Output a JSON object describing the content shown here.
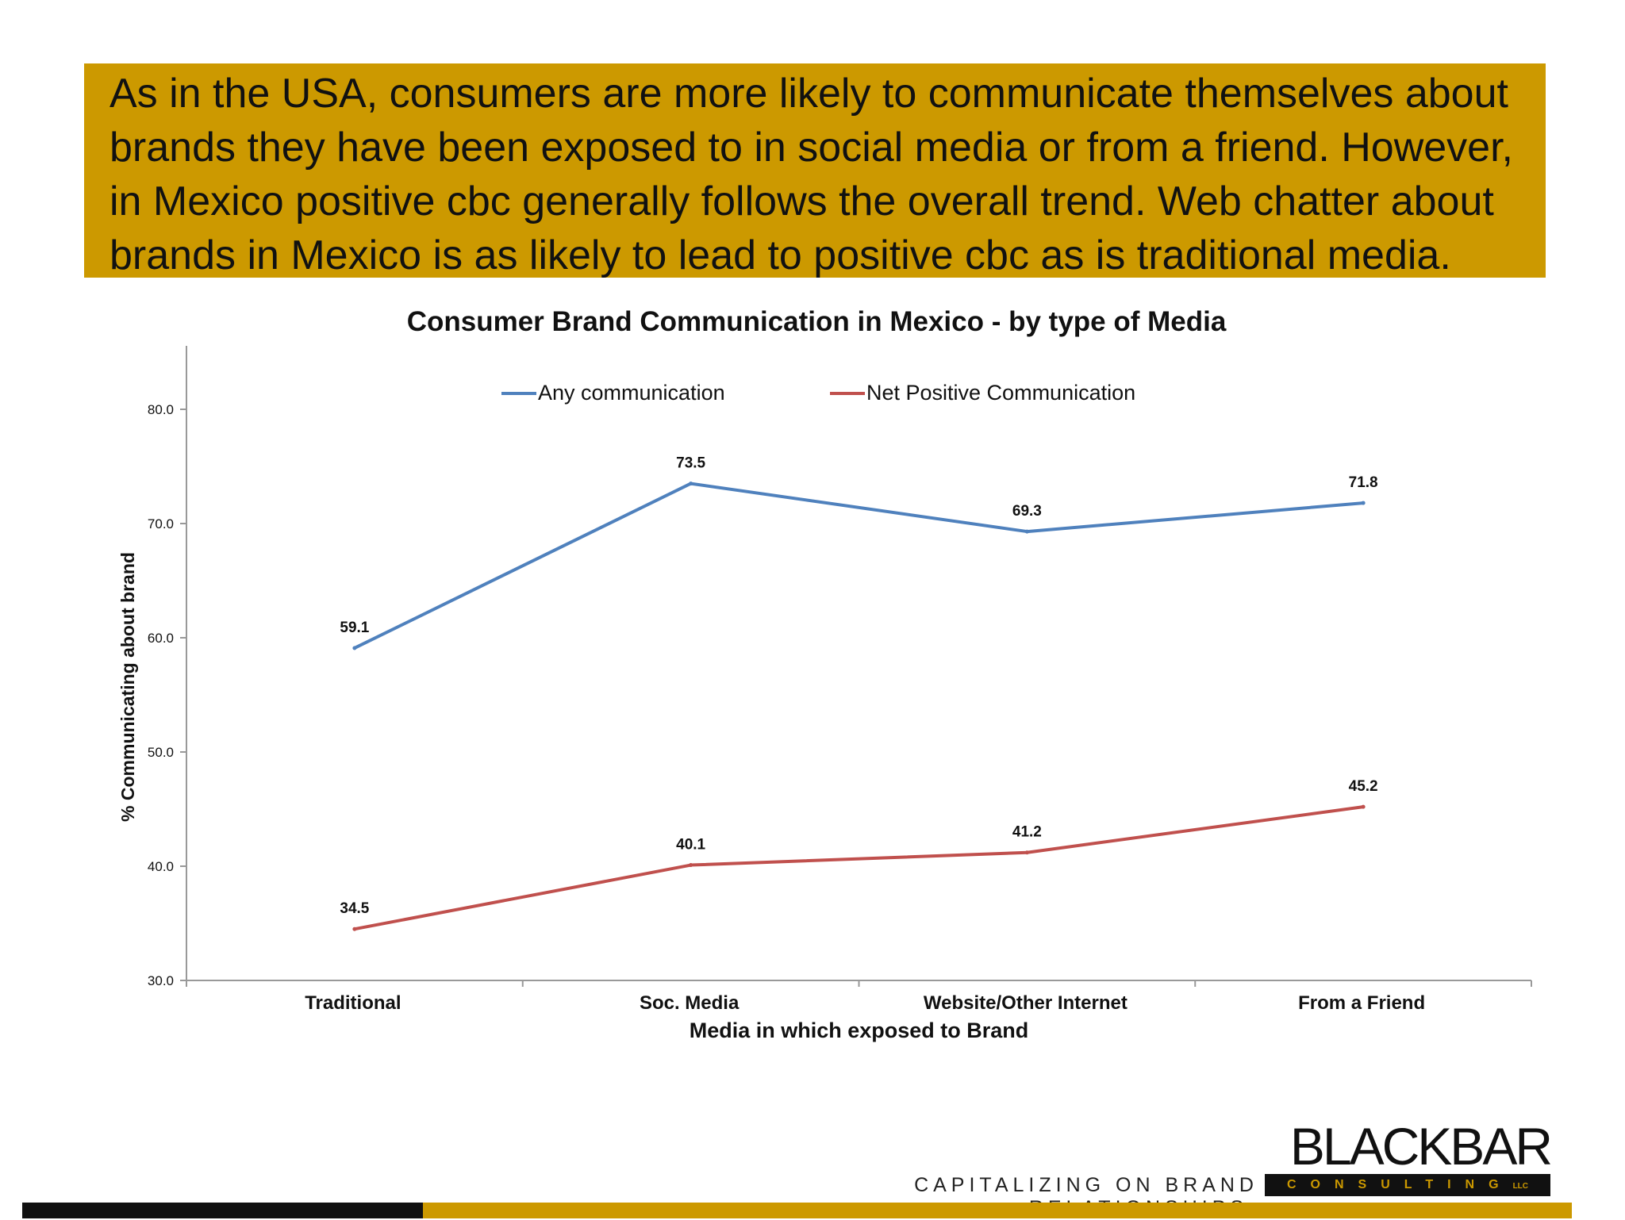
{
  "slide": {
    "headline": "As in the USA, consumers are more likely to communicate themselves about brands they have been exposed to in social media or from a friend. However, in Mexico positive cbc generally follows the overall trend. Web chatter about brands in Mexico  is as likely to lead to positive cbc as is traditional media.",
    "tagline": "CAPITALIZING ON BRAND RELATIONSHIPS.",
    "logo_word": "BLACKBAR",
    "logo_sub": "CONSULTING",
    "logo_suffix": "LLC",
    "colors": {
      "banner": "#cc9900",
      "footer_black": "#111111"
    }
  },
  "chart_data": {
    "type": "line",
    "title": "Consumer Brand Communication in Mexico - by type of Media",
    "xlabel": "Media in which exposed to Brand",
    "ylabel": "% Communicating about brand",
    "categories": [
      "Traditional",
      "Soc. Media",
      "Website/Other Internet",
      "From a Friend"
    ],
    "series": [
      {
        "name": "Any communication",
        "values": [
          59.1,
          73.5,
          69.3,
          71.8
        ],
        "labels": [
          "59.1",
          "73.5",
          "69.3",
          "71.8"
        ],
        "color": "#4f81bd"
      },
      {
        "name": "Net Positive Communication",
        "values": [
          34.5,
          40.1,
          41.2,
          45.2
        ],
        "labels": [
          "34.5",
          "40.1",
          "41.2",
          "45.2"
        ],
        "color": "#c0504d"
      }
    ],
    "ylim": [
      30,
      80
    ],
    "yticks": [
      "30.0",
      "40.0",
      "50.0",
      "60.0",
      "70.0",
      "80.0"
    ],
    "grid": false,
    "legend": "top"
  }
}
